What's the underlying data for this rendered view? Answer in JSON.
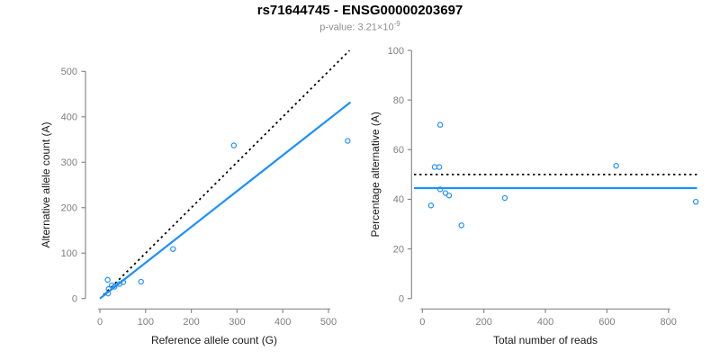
{
  "header": {
    "title": "rs71644745 - ENSG00000203697",
    "p_value_base": "p-value: 3.21×10",
    "p_value_exponent": "-9"
  },
  "colors": {
    "point_blue": "#1E90FF",
    "line_blue": "#1E90FF",
    "reference_black": "#000000",
    "axis_gray": "#8a8a8a",
    "tick_label_gray": "#7f7f7f",
    "axis_title_color": "#1a1a1a",
    "subtitle_gray": "#8f8f8f"
  },
  "chart_data": [
    {
      "type": "scatter",
      "name": "allele-counts",
      "title": "",
      "xlabel": "Reference allele count (G)",
      "ylabel": "Alternative allele count (A)",
      "xlim": [
        0,
        550
      ],
      "ylim": [
        0,
        550
      ],
      "xticks": [
        0,
        100,
        200,
        300,
        400,
        500
      ],
      "yticks": [
        0,
        100,
        200,
        300,
        400,
        500
      ],
      "grid": false,
      "legend": "none",
      "points": [
        [
          18,
          11
        ],
        [
          19,
          21
        ],
        [
          26,
          29
        ],
        [
          17,
          41
        ],
        [
          32,
          26
        ],
        [
          43,
          32
        ],
        [
          51,
          36
        ],
        [
          90,
          37
        ],
        [
          160,
          109
        ],
        [
          293,
          337
        ],
        [
          542,
          347
        ]
      ],
      "lines": [
        {
          "name": "identity-line",
          "style": "dotted",
          "color": "black",
          "x1": 8,
          "y1": 8,
          "x2": 546,
          "y2": 546
        },
        {
          "name": "regression-line",
          "style": "solid",
          "color": "blue",
          "x1": 0,
          "y1": 0,
          "x2": 548,
          "y2": 432
        }
      ]
    },
    {
      "type": "scatter",
      "name": "percentage-vs-coverage",
      "title": "",
      "xlabel": "Total number of reads",
      "ylabel": "Percentage alternative (A)",
      "xlim": [
        0,
        900
      ],
      "ylim": [
        0,
        100
      ],
      "xticks": [
        0,
        200,
        400,
        600,
        800
      ],
      "yticks": [
        0,
        20,
        40,
        60,
        80,
        100
      ],
      "grid": false,
      "legend": "none",
      "points": [
        [
          28,
          37.5
        ],
        [
          40,
          53
        ],
        [
          55,
          53
        ],
        [
          58,
          70
        ],
        [
          58,
          44
        ],
        [
          75,
          42.5
        ],
        [
          87,
          41.5
        ],
        [
          127,
          29.5
        ],
        [
          268,
          40.5
        ],
        [
          630,
          53.5
        ],
        [
          889,
          39
        ]
      ],
      "lines": [
        {
          "name": "fifty-percent-line",
          "style": "dotted",
          "color": "black",
          "y": 50
        },
        {
          "name": "mean-percentage-line",
          "style": "solid",
          "color": "blue",
          "y": 44.5
        }
      ]
    }
  ]
}
